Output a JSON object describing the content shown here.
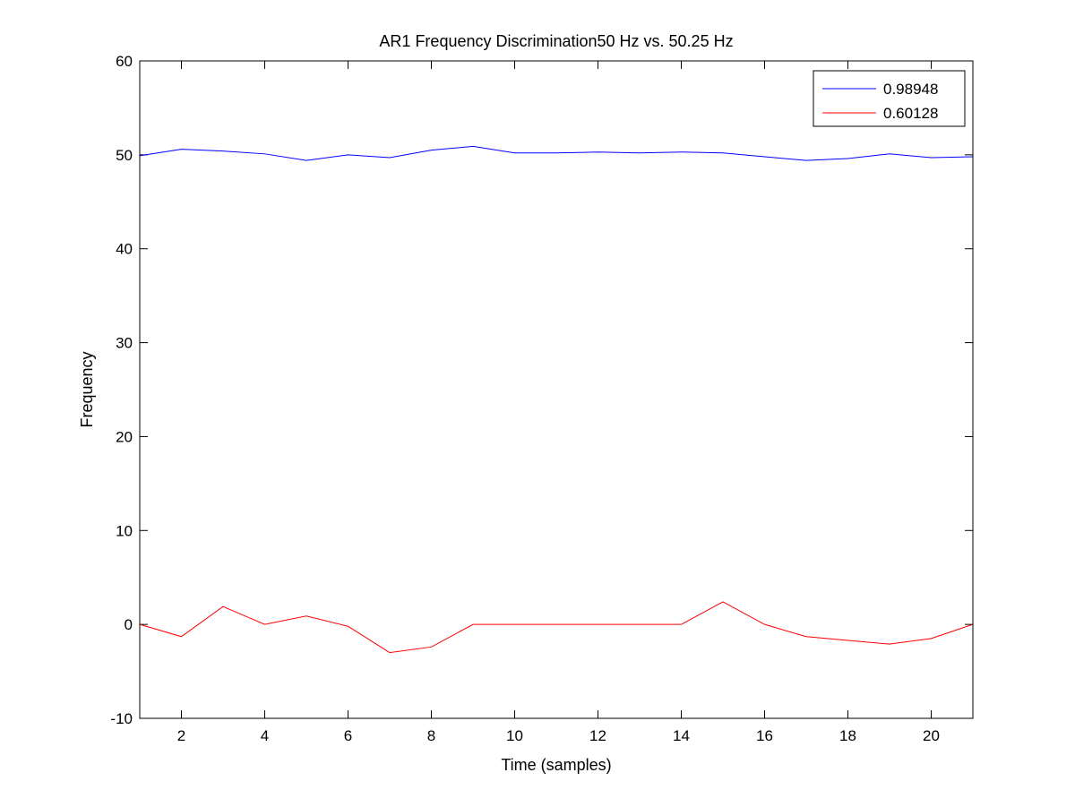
{
  "chart_data": {
    "type": "line",
    "title": "AR1 Frequency Discrimination50 Hz vs. 50.25 Hz",
    "xlabel": "Time (samples)",
    "ylabel": "Frequency",
    "xlim": [
      1,
      21
    ],
    "ylim": [
      -10,
      60
    ],
    "xticks": [
      2,
      4,
      6,
      8,
      10,
      12,
      14,
      16,
      18,
      20
    ],
    "yticks": [
      -10,
      0,
      10,
      20,
      30,
      40,
      50,
      60
    ],
    "grid": false,
    "legend_position": "top-right",
    "series": [
      {
        "name": "0.98948",
        "color": "#0000ff",
        "x": [
          1,
          2,
          3,
          4,
          5,
          6,
          7,
          8,
          9,
          10,
          11,
          12,
          13,
          14,
          15,
          16,
          17,
          18,
          19,
          20,
          21
        ],
        "values": [
          49.9,
          50.6,
          50.4,
          50.1,
          49.4,
          50.0,
          49.7,
          50.5,
          50.9,
          50.2,
          50.2,
          50.3,
          50.2,
          50.3,
          50.2,
          49.8,
          49.4,
          49.6,
          50.1,
          49.7,
          49.8
        ]
      },
      {
        "name": "0.60128",
        "color": "#ff0000",
        "x": [
          1,
          2,
          3,
          4,
          5,
          6,
          7,
          8,
          9,
          10,
          11,
          12,
          13,
          14,
          15,
          16,
          17,
          18,
          19,
          20,
          21
        ],
        "values": [
          0.0,
          -1.3,
          1.9,
          0.0,
          0.9,
          -0.2,
          -3.0,
          -2.4,
          0.0,
          0.0,
          0.0,
          0.0,
          0.0,
          0.0,
          2.4,
          0.0,
          -1.3,
          -1.7,
          -2.1,
          -1.5,
          0.0
        ]
      }
    ]
  }
}
